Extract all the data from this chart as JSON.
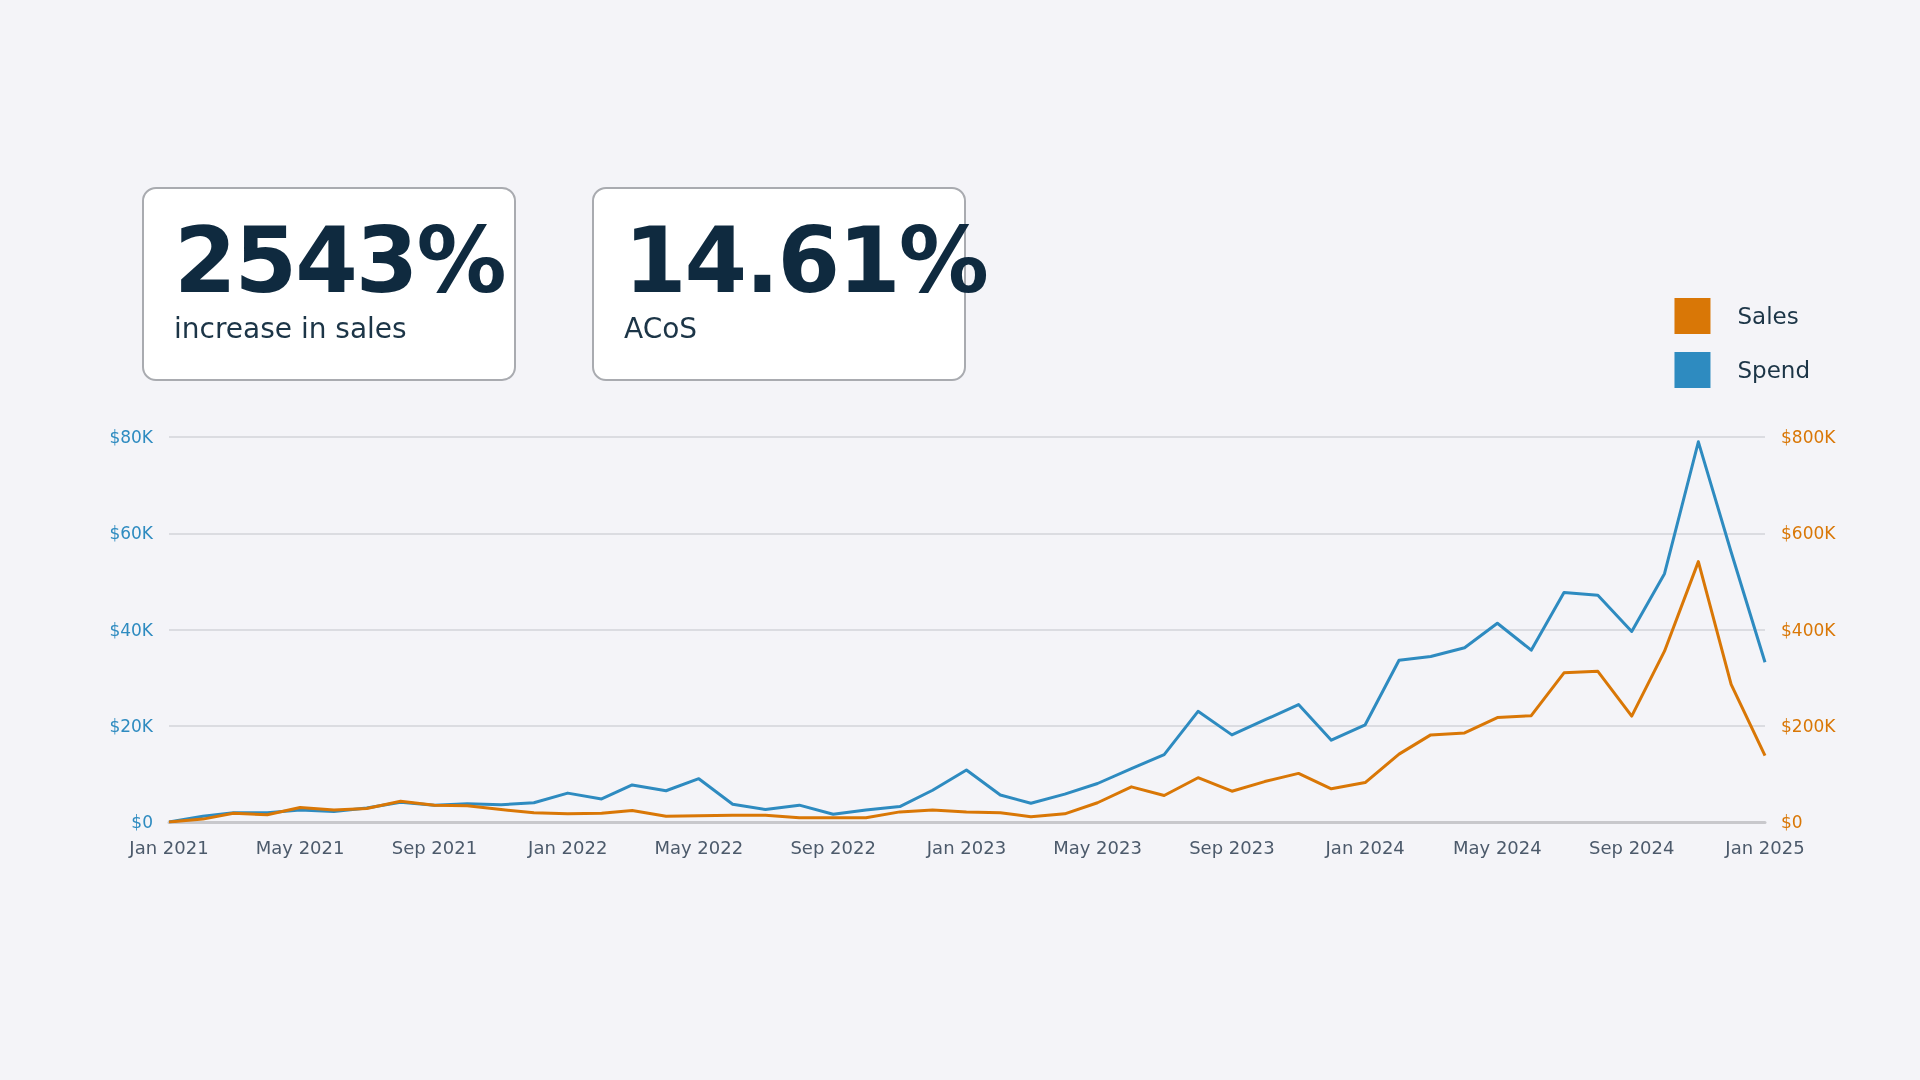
{
  "chart_data": [
    {
      "type": "other",
      "title": "2543%",
      "subtitle": "increase in sales"
    },
    {
      "type": "other",
      "title": "14.61%",
      "subtitle": "ACoS"
    },
    {
      "type": "line",
      "x": [
        "2021-01",
        "2021-02",
        "2021-03",
        "2021-04",
        "2021-05",
        "2021-06",
        "2021-07",
        "2021-08",
        "2021-09",
        "2021-10",
        "2021-11",
        "2021-12",
        "2022-01",
        "2022-02",
        "2022-03",
        "2022-04",
        "2022-05",
        "2022-06",
        "2022-07",
        "2022-08",
        "2022-09",
        "2022-10",
        "2022-11",
        "2022-12",
        "2023-01",
        "2023-02",
        "2023-03",
        "2023-04",
        "2023-05",
        "2023-06",
        "2023-07",
        "2023-08",
        "2023-09",
        "2023-10",
        "2023-11",
        "2023-12",
        "2024-01",
        "2024-02",
        "2024-03",
        "2024-04",
        "2024-05",
        "2024-06",
        "2024-07",
        "2024-08",
        "2024-09",
        "2024-10",
        "2024-11",
        "2024-12",
        "2025-01"
      ],
      "series": [
        {
          "name": "Sales",
          "color": "#d97706",
          "axis": "y2",
          "values": [
            0,
            6,
            18,
            15,
            30,
            25,
            28,
            43,
            35,
            34,
            26,
            19,
            17,
            18,
            24,
            12,
            13,
            14,
            14,
            9,
            9,
            9,
            21,
            25,
            21,
            19,
            11,
            17,
            40,
            73,
            55,
            92,
            64,
            84,
            101,
            69,
            82,
            141,
            181,
            185,
            217,
            221,
            310,
            313,
            220,
            355,
            541,
            286,
            138
          ]
        },
        {
          "name": "Spend",
          "color": "#2e8bc0",
          "values": [
            0,
            1.2,
            1.9,
            1.9,
            2.5,
            2.2,
            2.9,
            4.1,
            3.5,
            3.8,
            3.6,
            4.0,
            6.0,
            4.8,
            7.7,
            6.5,
            9.0,
            3.7,
            2.6,
            3.5,
            1.6,
            2.5,
            3.2,
            6.6,
            10.8,
            5.6,
            3.9,
            5.8,
            8.0,
            11.1,
            14.0,
            23.0,
            18.1,
            21.2,
            24.4,
            17.0,
            20.2,
            33.6,
            34.4,
            36.2,
            41.3,
            35.7,
            47.7,
            47.1,
            39.6,
            51.6,
            79.0,
            56.1,
            33.2
          ]
        }
      ],
      "xlim": [
        "2021-01",
        "2025-01"
      ],
      "xticks": [
        {
          "value": "2021-01",
          "label": "Jan 2021"
        },
        {
          "value": "2021-05",
          "label": "May 2021"
        },
        {
          "value": "2021-09",
          "label": "Sep 2021"
        },
        {
          "value": "2022-01",
          "label": "Jan 2022"
        },
        {
          "value": "2022-05",
          "label": "May 2022"
        },
        {
          "value": "2022-09",
          "label": "Sep 2022"
        },
        {
          "value": "2023-01",
          "label": "Jan 2023"
        },
        {
          "value": "2023-05",
          "label": "May 2023"
        },
        {
          "value": "2023-09",
          "label": "Sep 2023"
        },
        {
          "value": "2024-01",
          "label": "Jan 2024"
        },
        {
          "value": "2024-05",
          "label": "May 2024"
        },
        {
          "value": "2024-09",
          "label": "Sep 2024"
        },
        {
          "value": "2025-01",
          "label": "Jan 2025"
        }
      ],
      "ylim": [
        0,
        80
      ],
      "yticks": [
        {
          "value": 0,
          "label": "$0"
        },
        {
          "value": 20,
          "label": "$20K"
        },
        {
          "value": 40,
          "label": "$40K"
        },
        {
          "value": 60,
          "label": "$60K"
        },
        {
          "value": 80,
          "label": "$80K"
        }
      ],
      "y2lim": [
        0,
        800
      ],
      "y2ticks": [
        {
          "value": 0,
          "label": "$0"
        },
        {
          "value": 200,
          "label": "$200K"
        },
        {
          "value": 400,
          "label": "$400K"
        },
        {
          "value": 600,
          "label": "$600K"
        },
        {
          "value": 800,
          "label": "$800K"
        }
      ],
      "grid": "y",
      "legend": "top right"
    }
  ]
}
